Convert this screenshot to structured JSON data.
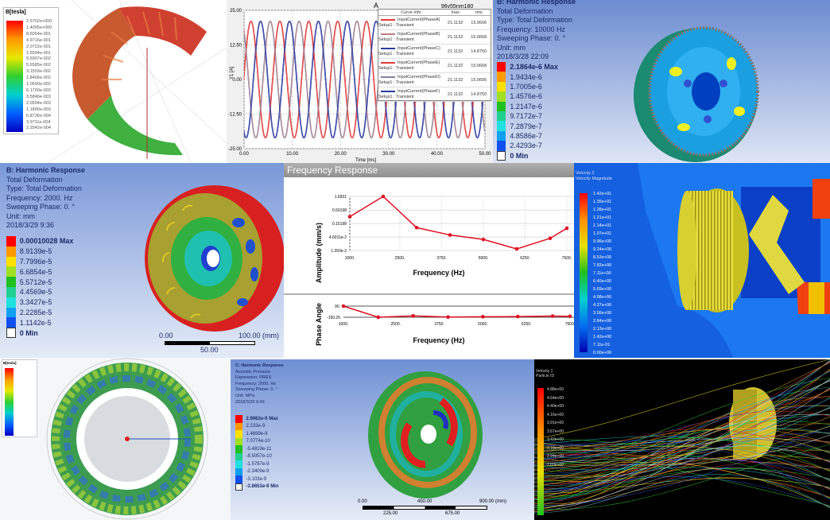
{
  "panel1": {
    "legend_title": "B[tesla]",
    "legend_values": [
      "2.5702e+000",
      "1.4095e+000",
      "8.6054e-001",
      "4.9716e-001",
      "2.0722e-001",
      "1.5594e-001",
      "9.5907e-002",
      "5.6585e-002",
      "3.1559e-002",
      "1.8406e-002",
      "1.0690e-002",
      "6.1700e-003",
      "3.5846e-003",
      "2.0594e-003",
      "1.1890e-003",
      "6.8736e-004",
      "3.9711e-004",
      "2.2942e-004"
    ]
  },
  "panel2": {
    "title": "A",
    "subtitle": "96v55nm180",
    "ylabel": "Y1 [A]",
    "xlabel": "Time [ms]",
    "table_headers": [
      "Curve Info",
      "max",
      "rms"
    ],
    "curves": [
      {
        "name": "InputCurrent(PhaseA)",
        "setup": "Setup1 : Transient",
        "max": "21.1132",
        "rms": "15.0606",
        "color": "#e03a3a"
      },
      {
        "name": "InputCurrent(PhaseB)",
        "setup": "Setup1 : Transient",
        "max": "21.1132",
        "rms": "15.0668",
        "color": "#c08080"
      },
      {
        "name": "InputCurrent(PhaseC)",
        "setup": "Setup1 : Transient",
        "max": "21.1132",
        "rms": "14.8750",
        "color": "#2a3aa0"
      },
      {
        "name": "InputCurrent(PhaseE)",
        "setup": "Setup1 : Transient",
        "max": "21.1132",
        "rms": "15.0668",
        "color": "#e03a3a"
      },
      {
        "name": "InputCurrent(PhaseD)",
        "setup": "Setup1 : Transient",
        "max": "21.1132",
        "rms": "15.0606",
        "color": "#8080a0"
      },
      {
        "name": "InputCurrent(PhaseF)",
        "setup": "Setup1 : Transient",
        "max": "21.1132",
        "rms": "14.8750",
        "color": "#2a3aa0"
      }
    ]
  },
  "panel3": {
    "lines": [
      "B: Harmonic Response",
      "Total Deformation",
      "Type: Total Deformation",
      "Frequency: 10000 Hz",
      "Sweeping Phase: 0. °",
      "Unit: mm",
      "2018/3/28 22:09"
    ],
    "legend_values": [
      "2.1864e-6 Max",
      "1.9434e-6",
      "1.7005e-6",
      "1.4576e-6",
      "1.2147e-6",
      "9.7172e-7",
      "7.2879e-7",
      "4.8586e-7",
      "2.4293e-7",
      "0 Min"
    ]
  },
  "panel4": {
    "lines": [
      "B: Harmonic Response",
      "Total Deformation",
      "Type: Total Deformation",
      "Frequency: 2000. Hz",
      "Sweeping Phase: 0. °",
      "Unit: mm",
      "2018/3/29 9:36"
    ],
    "legend_values": [
      "0.00010028 Max",
      "8.9139e-5",
      "7.7996e-5",
      "6.6854e-5",
      "5.5712e-5",
      "4.4569e-5",
      "3.3427e-5",
      "2.2285e-5",
      "1.1142e-5",
      "0 Min"
    ],
    "scale": {
      "start": "0.00",
      "end": "100.00 (mm)",
      "mid": "50.00"
    }
  },
  "panel6": {
    "lines": [
      "Velocity 2",
      "Velocity Magnitude"
    ],
    "legend_values": [
      "1.42e+01",
      "1.35e+01",
      "1.28e+01",
      "1.21e+01",
      "1.14e+01",
      "1.07e+01",
      "9.96e+00",
      "9.24e+00",
      "8.53e+00",
      "7.82e+00",
      "7.11e+00",
      "6.40e+00",
      "5.69e+00",
      "4.98e+00",
      "4.27e+00",
      "3.56e+00",
      "2.84e+00",
      "2.13e+00",
      "1.42e+00",
      "7.11e-01",
      "0.00e+00"
    ]
  },
  "panel7": {
    "legend_title": "B[tesla]"
  },
  "panel8": {
    "lines": [
      "C: Harmonic Response",
      "Acoustic Pressure",
      "Expression: PRES",
      "Frequency: 2000. Hz",
      "Sweeping Phase: 0. °",
      "Unit: MPa",
      "2018/3/29 9:43"
    ],
    "legend_values": [
      "2.9962e-9 Max",
      "2.233e-9",
      "1.4699e-9",
      "7.0774e-10",
      "-5.4819e-11",
      "-8.5057e-10",
      "-1.5787e-9",
      "-2.3409e-9",
      "-3.103e-9",
      "-3.8653e-9 Min"
    ],
    "scale": {
      "start": "0.00",
      "end": "900.00 (mm)",
      "mid": "450.00",
      "q1": "225.00",
      "q3": "675.00"
    }
  },
  "panel9": {
    "lines": [
      "Velocity 1",
      "Particle ID"
    ],
    "legend_values": [
      "4.88e+00",
      "4.64e+00",
      "4.40e+00",
      "4.16e+00",
      "3.91e+00",
      "3.67e+00",
      "3.42e+00",
      "3.18e+00",
      "2.94e+00",
      "2.69e+00"
    ]
  },
  "chart_data": [
    {
      "type": "line",
      "title": "A",
      "xlabel": "Time [ms]",
      "ylabel": "Y1 [A]",
      "xlim": [
        0,
        50
      ],
      "ylim": [
        -25,
        25
      ],
      "xticks": [
        "0.00",
        "10.00",
        "20.00",
        "30.00",
        "40.00",
        "50.00"
      ],
      "yticks": [
        "25.00",
        "12.50",
        "0.00",
        "-12.50",
        "-25.00"
      ],
      "grid": true,
      "legend_placement": "top-right",
      "series_model": "sine",
      "amplitude": 21.1132,
      "period_ms": 6,
      "phase_deg": [
        0,
        120,
        240,
        0,
        120,
        240
      ]
    },
    {
      "type": "line",
      "title": "Frequency Response",
      "xlabel": "Frequency (Hz)",
      "ylabel": "Amplitude (mm/s)",
      "yscale": "log",
      "grid": true,
      "xticks": [
        "1000.",
        "2500.",
        "3750.",
        "5000.",
        "6250.",
        "7500."
      ],
      "yticks": [
        "1.6931",
        "0.50198",
        "0.15198",
        "4.6011e-2",
        "1.393e-2"
      ],
      "x": [
        1000,
        2000,
        3000,
        4000,
        5000,
        6000,
        7000,
        7500
      ],
      "values": [
        0.28,
        1.69,
        0.106,
        0.055,
        0.037,
        0.016,
        0.041,
        0.1
      ]
    },
    {
      "type": "line",
      "xlabel": "Frequency (Hz)",
      "ylabel": "Phase Angle",
      "yticks": [
        "90.",
        "-150.25"
      ],
      "ylim": [
        -150.25,
        90
      ],
      "xticks": [
        "1000.",
        "2500.",
        "3750.",
        "5000.",
        "6250.",
        "7500."
      ],
      "x": [
        1000,
        2000,
        3000,
        4000,
        5000,
        6000,
        7000,
        7500
      ],
      "values": [
        90,
        -150,
        -120,
        -145,
        -140,
        -135,
        -125,
        -130
      ]
    }
  ]
}
